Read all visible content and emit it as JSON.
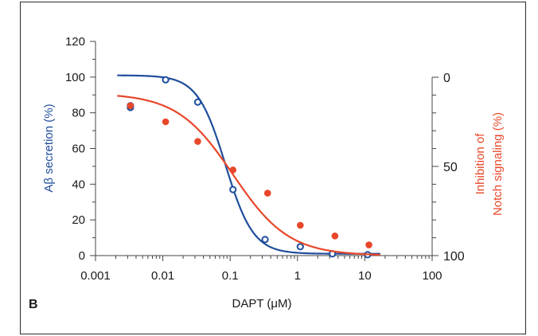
{
  "panel_label": "B",
  "colors": {
    "left_series": "#1f4e9c",
    "right_series": "#e8472a",
    "axis": "#444444",
    "text": "#1a1a1a"
  },
  "chart_data": {
    "type": "scatter",
    "xlabel": "DAPT (μM)",
    "x_scale": "log",
    "xlim": [
      0.001,
      100
    ],
    "x_ticks": [
      0.001,
      0.01,
      0.1,
      1,
      10,
      100
    ],
    "x_tick_labels": [
      "0.001",
      "0.01",
      "0.1",
      "1",
      "10",
      "100"
    ],
    "ylabel": "Aβ secretion (%)",
    "ylim": [
      0,
      120
    ],
    "y_ticks": [
      0,
      20,
      40,
      60,
      80,
      100,
      120
    ],
    "y_tick_labels": [
      "0",
      "20",
      "40",
      "60",
      "80",
      "100",
      "120"
    ],
    "y2label_line1": "Inhibition of",
    "y2label_line2": "Notch signaling (%)",
    "y2lim": [
      0,
      100
    ],
    "y2_inverted": true,
    "y2_ticks": [
      0,
      50,
      100
    ],
    "y2_tick_labels": [
      "0",
      "50",
      "100"
    ],
    "series": [
      {
        "axis": "left",
        "marker": "open-circle",
        "points": [
          [
            0.0033,
            83
          ],
          [
            0.0033,
            84
          ],
          [
            0.011,
            98.5
          ],
          [
            0.033,
            86
          ],
          [
            0.11,
            37
          ],
          [
            0.33,
            9
          ],
          [
            1.1,
            5
          ],
          [
            3.3,
            1
          ],
          [
            11,
            0.5
          ]
        ],
        "fit": {
          "top": 101,
          "bottom": 1,
          "ec50": 0.085,
          "hill": 2.1
        }
      },
      {
        "axis": "right",
        "marker": "filled-circle",
        "points": [
          [
            0.0033,
            16
          ],
          [
            0.011,
            25
          ],
          [
            0.033,
            36
          ],
          [
            0.11,
            52
          ],
          [
            0.36,
            65
          ],
          [
            1.1,
            83
          ],
          [
            3.6,
            89
          ],
          [
            11.5,
            94
          ]
        ],
        "fit": {
          "top": 9,
          "bottom": 100,
          "ec50": 0.11,
          "hill": 1.05
        }
      }
    ]
  }
}
